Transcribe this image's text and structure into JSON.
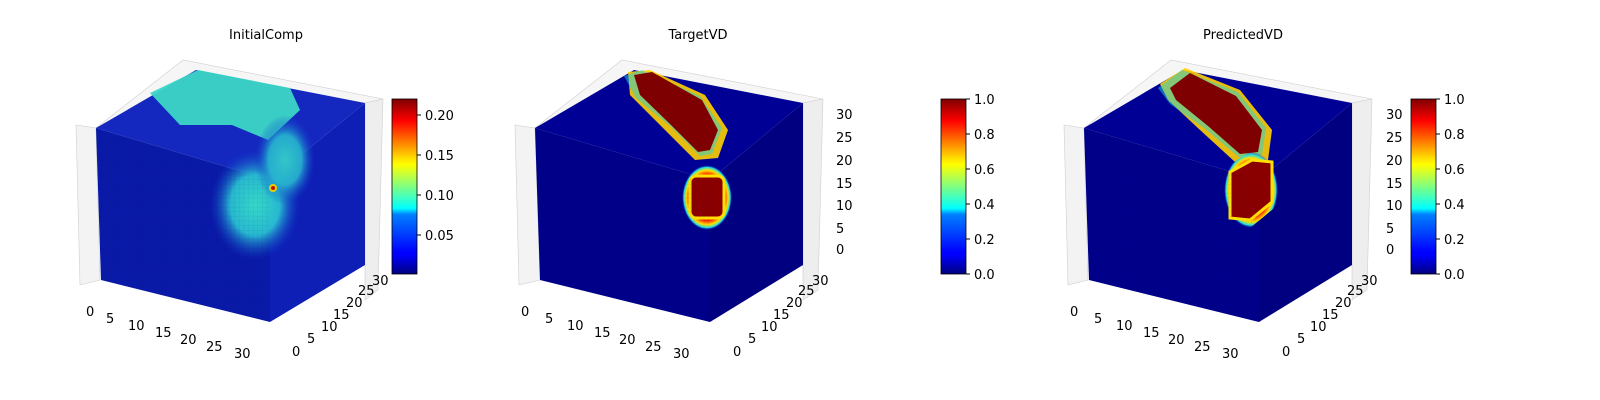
{
  "chart_data": [
    {
      "type": "heatmap",
      "title": "InitialComp",
      "xticks": [
        "0",
        "5",
        "10",
        "15",
        "20",
        "25",
        "30"
      ],
      "yticks": [
        "0",
        "5",
        "10",
        "15",
        "20",
        "25",
        "30"
      ],
      "zticks": [],
      "colorbar": {
        "range": [
          0.01,
          0.22
        ],
        "ticks": [
          "0.05",
          "0.10",
          "0.15",
          "0.20"
        ],
        "tick_values": [
          0.05,
          0.1,
          0.15,
          0.2
        ],
        "colormap": "jet"
      }
    },
    {
      "type": "heatmap",
      "title": "TargetVD",
      "xticks": [
        "0",
        "5",
        "10",
        "15",
        "20",
        "25",
        "30"
      ],
      "yticks": [
        "0",
        "5",
        "10",
        "15",
        "20",
        "25",
        "30"
      ],
      "zticks": [
        "0",
        "5",
        "10",
        "15",
        "20",
        "25",
        "30"
      ],
      "colorbar": {
        "range": [
          0.0,
          1.0
        ],
        "ticks": [
          "0.0",
          "0.2",
          "0.4",
          "0.6",
          "0.8",
          "1.0"
        ],
        "tick_values": [
          0,
          0.2,
          0.4,
          0.6,
          0.8,
          1.0
        ],
        "colormap": "jet"
      }
    },
    {
      "type": "heatmap",
      "title": "PredictedVD",
      "xticks": [
        "0",
        "5",
        "10",
        "15",
        "20",
        "25",
        "30"
      ],
      "yticks": [
        "0",
        "5",
        "10",
        "15",
        "20",
        "25",
        "30"
      ],
      "zticks": [
        "0",
        "5",
        "10",
        "15",
        "20",
        "25",
        "30"
      ],
      "colorbar": {
        "range": [
          0.0,
          1.0
        ],
        "ticks": [
          "0.0",
          "0.2",
          "0.4",
          "0.6",
          "0.8",
          "1.0"
        ],
        "tick_values": [
          0,
          0.2,
          0.4,
          0.6,
          0.8,
          1.0
        ],
        "colormap": "jet"
      }
    }
  ],
  "colors": {
    "jet_dark_blue": "#00007f",
    "jet_dark_red": "#7f0000",
    "cyan": "#33d6c8",
    "pane": "#f2f2f2",
    "grid": "#cfcfcf"
  }
}
